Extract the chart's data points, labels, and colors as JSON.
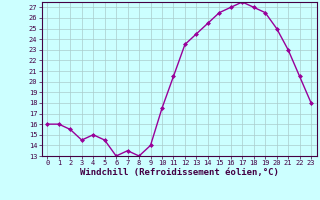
{
  "x": [
    0,
    1,
    2,
    3,
    4,
    5,
    6,
    7,
    8,
    9,
    10,
    11,
    12,
    13,
    14,
    15,
    16,
    17,
    18,
    19,
    20,
    21,
    22,
    23
  ],
  "y": [
    16,
    16,
    15.5,
    14.5,
    15,
    14.5,
    13,
    13.5,
    13,
    14,
    17.5,
    20.5,
    23.5,
    24.5,
    25.5,
    26.5,
    27,
    27.5,
    27,
    26.5,
    25,
    23,
    20.5,
    18
  ],
  "line_color": "#990099",
  "marker": "D",
  "markersize": 2,
  "linewidth": 1.0,
  "bg_color": "#ccffff",
  "plot_bg_color": "#ccffff",
  "grid_color": "#aacccc",
  "xlabel": "Windchill (Refroidissement éolien,°C)",
  "xlim": [
    -0.5,
    23.5
  ],
  "ylim": [
    13,
    27.5
  ],
  "yticks": [
    13,
    14,
    15,
    16,
    17,
    18,
    19,
    20,
    21,
    22,
    23,
    24,
    25,
    26,
    27
  ],
  "xticks": [
    0,
    1,
    2,
    3,
    4,
    5,
    6,
    7,
    8,
    9,
    10,
    11,
    12,
    13,
    14,
    15,
    16,
    17,
    18,
    19,
    20,
    21,
    22,
    23
  ],
  "tick_fontsize": 5.0,
  "xlabel_fontsize": 6.5,
  "text_color": "#440044"
}
